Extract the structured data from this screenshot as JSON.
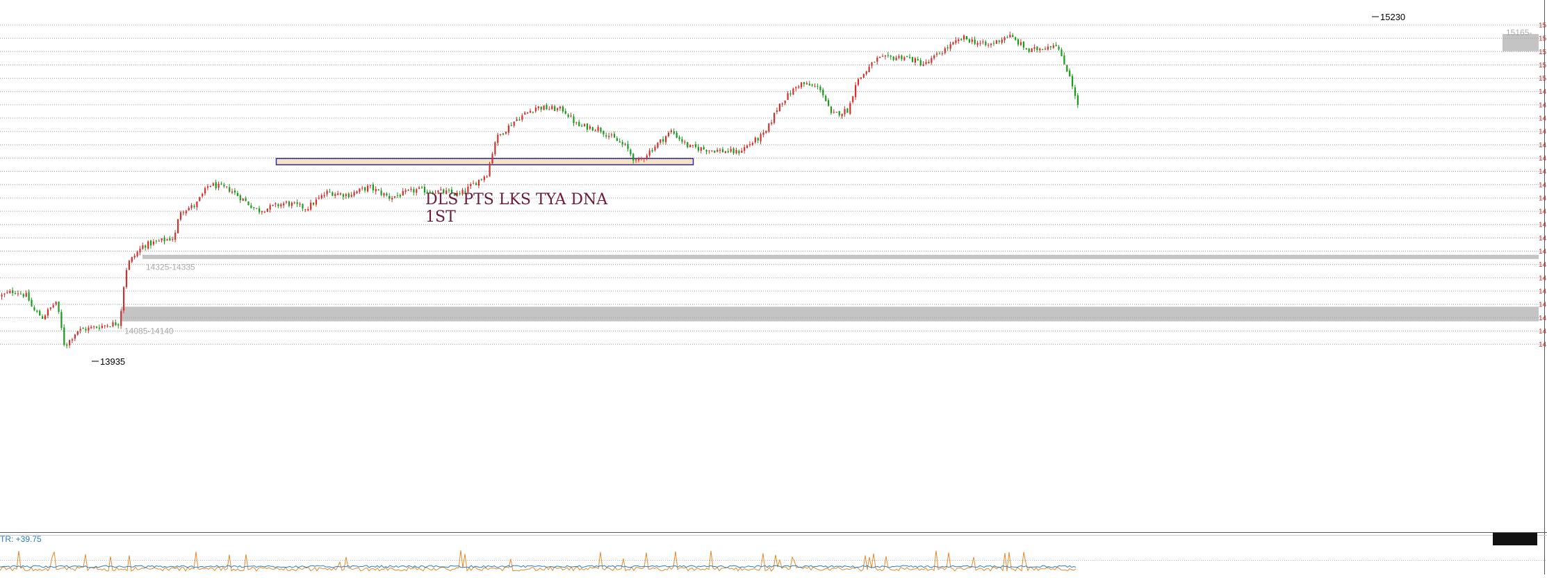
{
  "colors": {
    "background": "#ffffff",
    "up_candle": "#d0312d",
    "down_candle": "#1a9a1a",
    "grid": "#9a9a9a",
    "zone": "#c4c4c4",
    "annotation_text": "#6b1a3a",
    "range_box_fill": "#f7e3c4",
    "range_box_stroke": "#2c2c9c",
    "atr_label": "#2a7bbf",
    "axis_label": "#c03030"
  },
  "chart_data": {
    "type": "candlestick",
    "title": "",
    "xlabel": "",
    "ylabel": "",
    "ylim": [
      13850,
      15280
    ],
    "grid": "horizontal-dotted",
    "price_markers": [
      {
        "label": "15230",
        "value": 15230
      },
      {
        "label": "13935",
        "value": 13935
      }
    ],
    "zones": [
      {
        "label": "14085-14140",
        "low": 14085,
        "high": 14140
      },
      {
        "label": "14325-14335",
        "low": 14325,
        "high": 14335
      },
      {
        "label": "15165-",
        "low": 15100,
        "high": 15165
      }
    ],
    "range_box": {
      "low": 14660,
      "high": 14680
    },
    "annotation": {
      "lines": [
        "DLS  PTS  LKS  TYA  DNA",
        "1ST"
      ]
    },
    "waypoints": [
      [
        0,
        14180
      ],
      [
        20,
        14200
      ],
      [
        38,
        14180
      ],
      [
        46,
        14130
      ],
      [
        60,
        14100
      ],
      [
        80,
        14160
      ],
      [
        92,
        13990
      ],
      [
        110,
        14050
      ],
      [
        150,
        14070
      ],
      [
        172,
        14080
      ],
      [
        174,
        14170
      ],
      [
        182,
        14300
      ],
      [
        205,
        14370
      ],
      [
        250,
        14400
      ],
      [
        258,
        14500
      ],
      [
        280,
        14520
      ],
      [
        300,
        14600
      ],
      [
        330,
        14580
      ],
      [
        370,
        14500
      ],
      [
        410,
        14530
      ],
      [
        440,
        14510
      ],
      [
        470,
        14570
      ],
      [
        500,
        14560
      ],
      [
        530,
        14590
      ],
      [
        560,
        14550
      ],
      [
        600,
        14580
      ],
      [
        640,
        14570
      ],
      [
        660,
        14560
      ],
      [
        700,
        14640
      ],
      [
        712,
        14770
      ],
      [
        740,
        14840
      ],
      [
        770,
        14890
      ],
      [
        810,
        14880
      ],
      [
        830,
        14820
      ],
      [
        860,
        14810
      ],
      [
        900,
        14740
      ],
      [
        915,
        14680
      ],
      [
        940,
        14740
      ],
      [
        965,
        14800
      ],
      [
        990,
        14740
      ],
      [
        1020,
        14730
      ],
      [
        1060,
        14720
      ],
      [
        1100,
        14790
      ],
      [
        1120,
        14900
      ],
      [
        1150,
        14980
      ],
      [
        1180,
        14960
      ],
      [
        1195,
        14860
      ],
      [
        1220,
        14880
      ],
      [
        1230,
        14980
      ],
      [
        1260,
        15070
      ],
      [
        1300,
        15080
      ],
      [
        1330,
        15050
      ],
      [
        1360,
        15110
      ],
      [
        1385,
        15150
      ],
      [
        1420,
        15120
      ],
      [
        1450,
        15160
      ],
      [
        1480,
        15100
      ],
      [
        1520,
        15130
      ],
      [
        1525,
        15080
      ],
      [
        1540,
        15000
      ],
      [
        1548,
        14900
      ]
    ],
    "indicator": {
      "name": "ATR",
      "label": "TR: +39.75"
    }
  }
}
